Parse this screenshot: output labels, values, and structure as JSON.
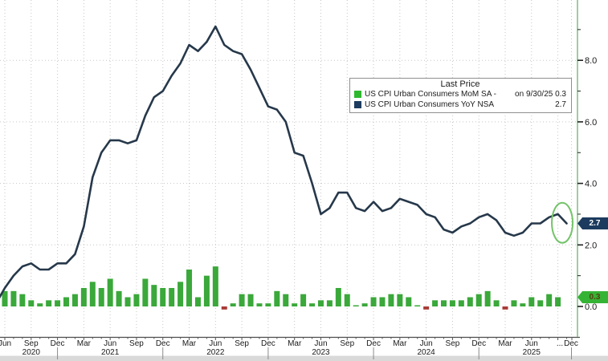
{
  "chart_data": {
    "type": "mixed",
    "description": "US CPI monthly chart: green bars = MoM SA change, navy line = YoY NSA change",
    "x": {
      "monthly_start": "May 2020 (line lead-in), bars start Jun 2020",
      "quarter_labels": [
        "Jun",
        "Sep",
        "Dec",
        "Mar",
        "Jun",
        "Sep",
        "Dec",
        "Mar",
        "Jun",
        "Sep",
        "Dec",
        "Mar",
        "Jun",
        "Sep",
        "Dec",
        "Mar",
        "Jun",
        "Sep",
        "Dec",
        "Mar",
        "Jun"
      ],
      "tail_labels": [
        "...",
        "Dec"
      ],
      "years": [
        {
          "label": "2020",
          "month": 3
        },
        {
          "label": "2021",
          "month": 12
        },
        {
          "label": "2022",
          "month": 24
        },
        {
          "label": "2023",
          "month": 36
        },
        {
          "label": "2024",
          "month": 48
        },
        {
          "label": "2025",
          "month": 60
        }
      ],
      "year_separator_months": [
        6,
        18,
        30,
        42,
        54
      ]
    },
    "y_axis": {
      "major_ticks": [
        0,
        2,
        4,
        6,
        8
      ],
      "major_labels": [
        "0.0",
        "2.0",
        "4.0",
        "6.0",
        "8.0"
      ],
      "minor_ticks": [
        1,
        3,
        5,
        7,
        9
      ],
      "ylim": [
        -1,
        10
      ],
      "grid_values": [
        2,
        4,
        6,
        8
      ],
      "side": "right"
    },
    "series": [
      {
        "name": "US CPI Urban Consumers MoM SA",
        "type": "bar",
        "color": "#3aa83a",
        "negative_color": "#a83b35",
        "start_month_index": 0,
        "values": [
          0.5,
          0.5,
          0.4,
          0.2,
          0.1,
          0.2,
          0.2,
          0.3,
          0.4,
          0.6,
          0.8,
          0.6,
          0.9,
          0.5,
          0.3,
          0.4,
          0.9,
          0.7,
          0.6,
          0.6,
          0.8,
          1.2,
          0.3,
          1.0,
          1.3,
          -0.1,
          0.1,
          0.4,
          0.4,
          0.1,
          0.1,
          0.5,
          0.4,
          0.1,
          0.4,
          0.1,
          0.2,
          0.2,
          0.6,
          0.4,
          0.0,
          0.1,
          0.3,
          0.3,
          0.4,
          0.4,
          0.3,
          0.0,
          -0.1,
          0.2,
          0.2,
          0.2,
          0.2,
          0.3,
          0.4,
          0.5,
          0.2,
          -0.1,
          0.2,
          0.1,
          0.3,
          0.2,
          0.4,
          0.3
        ]
      },
      {
        "name": "US CPI Urban Consumers YoY NSA",
        "type": "line",
        "color": "#26384a",
        "start_month_index": -1,
        "values": [
          0.1,
          0.6,
          1.0,
          1.3,
          1.4,
          1.2,
          1.2,
          1.4,
          1.4,
          1.7,
          2.6,
          4.2,
          5.0,
          5.4,
          5.4,
          5.3,
          5.4,
          6.2,
          6.8,
          7.0,
          7.5,
          7.9,
          8.5,
          8.3,
          8.6,
          9.1,
          8.5,
          8.3,
          8.2,
          7.7,
          7.1,
          6.5,
          6.4,
          6.0,
          5.0,
          4.9,
          4.0,
          3.0,
          3.2,
          3.7,
          3.7,
          3.2,
          3.1,
          3.4,
          3.1,
          3.2,
          3.5,
          3.4,
          3.3,
          3.0,
          2.9,
          2.5,
          2.4,
          2.6,
          2.7,
          2.9,
          3.0,
          2.8,
          2.4,
          2.3,
          2.4,
          2.7,
          2.7,
          2.9,
          3.0,
          2.7
        ]
      }
    ],
    "legend": {
      "title": "Last Price",
      "rows": [
        {
          "swatch_color": "#2eb82e",
          "label": "US CPI Urban Consumers MoM SA -",
          "value": "on 9/30/25 0.3"
        },
        {
          "swatch_color": "#1c3b5e",
          "label": "US CPI Urban Consumers YoY NSA",
          "value": "2.7"
        }
      ]
    },
    "badges": {
      "yoy": {
        "text": "2.7",
        "value": 2.7,
        "bg": "#1c3b5e",
        "fg": "#ffffff"
      },
      "mom": {
        "text": "0.3",
        "value": 0.3,
        "bg": "#35b335",
        "fg": "#54400f"
      }
    },
    "annotation": {
      "shape": "ellipse",
      "meaning": "highlights final YoY downtick",
      "color": "#74c36a",
      "center_month": 63.5,
      "center_value": 2.72
    },
    "colors": {
      "grid": "#c6c6c6",
      "axis_line": "#4d4d4d",
      "right_spine": "#9ccf9e",
      "tick": "#222222",
      "bottom_strip": "#d9d9d9",
      "separator": "#8a8a8a"
    },
    "grid": "dotted, quarterly vertical + every 2.0 horizontal"
  }
}
